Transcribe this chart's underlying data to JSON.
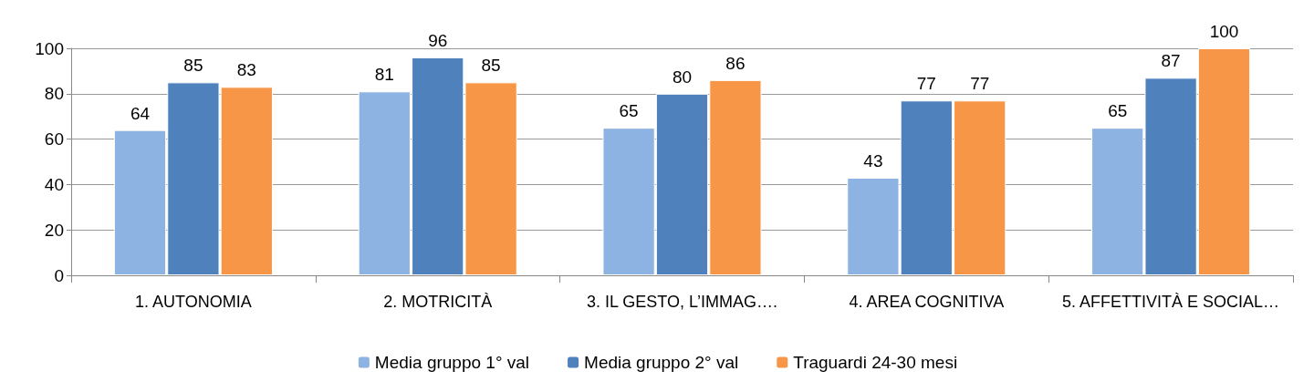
{
  "chart_data": {
    "type": "bar",
    "categories": [
      "1. AUTONOMIA",
      "2. MOTRICITÀ",
      "3. IL GESTO, L’IMMAG….",
      "4. AREA COGNITIVA",
      "5. AFFETTIVITÀ E SOCIAL…"
    ],
    "series": [
      {
        "name": "Media gruppo 1° val",
        "color": "#8db3e2",
        "values": [
          64,
          81,
          65,
          43,
          65
        ]
      },
      {
        "name": "Media gruppo 2° val",
        "color": "#4f81bd",
        "values": [
          85,
          96,
          80,
          77,
          87
        ]
      },
      {
        "name": "Traguardi 24-30 mesi",
        "color": "#f79646",
        "values": [
          83,
          85,
          86,
          77,
          100
        ]
      }
    ],
    "ylim": [
      0,
      100
    ],
    "yticks": [
      0,
      20,
      40,
      60,
      80,
      100
    ],
    "grid": "y",
    "legend": "bottom",
    "data_labels": true
  }
}
